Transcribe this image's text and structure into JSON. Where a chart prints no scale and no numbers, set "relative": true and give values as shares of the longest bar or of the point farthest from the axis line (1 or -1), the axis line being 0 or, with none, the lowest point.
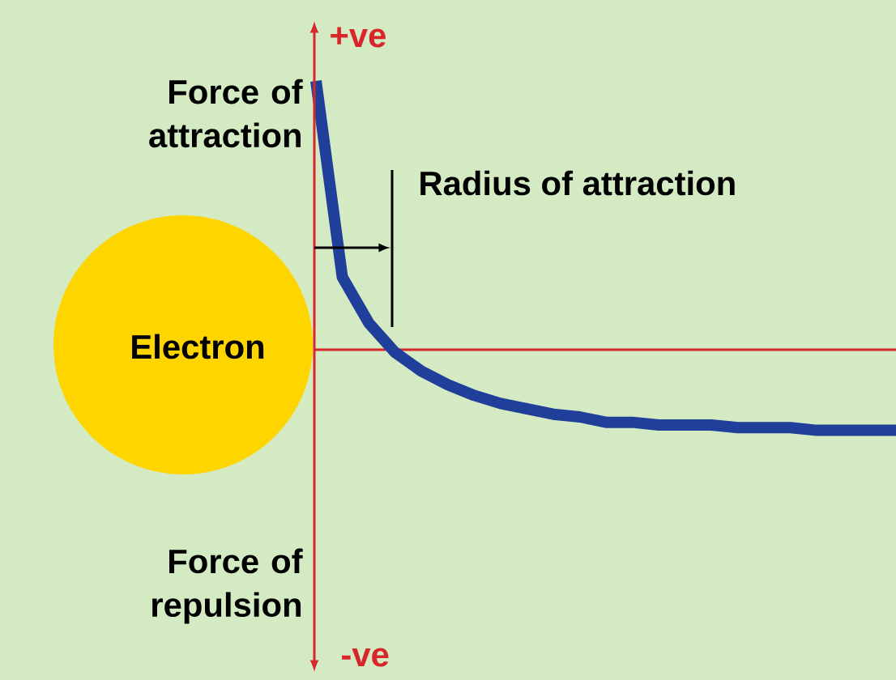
{
  "chart_data": {
    "type": "line",
    "relative": true,
    "categories": [
      null,
      null,
      null,
      null,
      null,
      null,
      null,
      null,
      null,
      null,
      null,
      null,
      null,
      null,
      null,
      null,
      null,
      null,
      null,
      null,
      null,
      null,
      null
    ],
    "series": [
      {
        "color": "#1f3f9a",
        "values": [
          1,
          0.27,
          0.1,
          -0.01,
          -0.08,
          -0.13,
          -0.17,
          -0.2,
          -0.22,
          -0.24,
          -0.25,
          -0.27,
          -0.27,
          -0.28,
          -0.28,
          -0.28,
          -0.29,
          -0.29,
          -0.29,
          -0.3,
          -0.3,
          -0.3,
          -0.3
        ]
      }
    ],
    "ref_lines": [
      {
        "axis": "y",
        "value": 0,
        "color": "#d9262b"
      }
    ],
    "annotations": [
      "+ve",
      "Force of attraction",
      "Radius of attraction",
      "Electron",
      "Force of repulsion",
      "-ve"
    ]
  }
}
